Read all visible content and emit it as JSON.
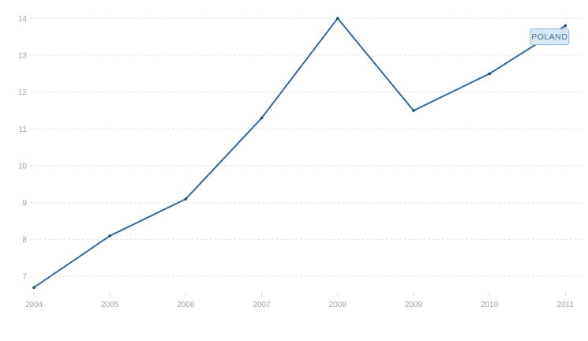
{
  "chart_data": {
    "type": "line",
    "title": "",
    "xlabel": "",
    "ylabel": "",
    "x": [
      2004,
      2005,
      2006,
      2007,
      2008,
      2009,
      2010,
      2011
    ],
    "series": [
      {
        "name": "POLAND",
        "values": [
          6.7,
          8.1,
          9.1,
          11.3,
          14.0,
          11.5,
          12.5,
          13.8
        ]
      }
    ],
    "yticks": [
      7,
      8,
      9,
      10,
      11,
      12,
      13,
      14
    ],
    "ylim": [
      6.5,
      14.2
    ],
    "grid": "horizontal-dashed",
    "legend_position": "end-of-line-label"
  },
  "series_label": {
    "text": "POLAND"
  },
  "colors": {
    "background": "#ffffff",
    "line": "#35689b",
    "marker": "#1e4d72",
    "gridline": "#e4e4e4",
    "tick": "#d4d4d4",
    "axis_label": "#a2a2a2",
    "label_box_fill": "#d8e8f7",
    "label_box_border": "#8fbadc",
    "label_text": "#44708f"
  }
}
